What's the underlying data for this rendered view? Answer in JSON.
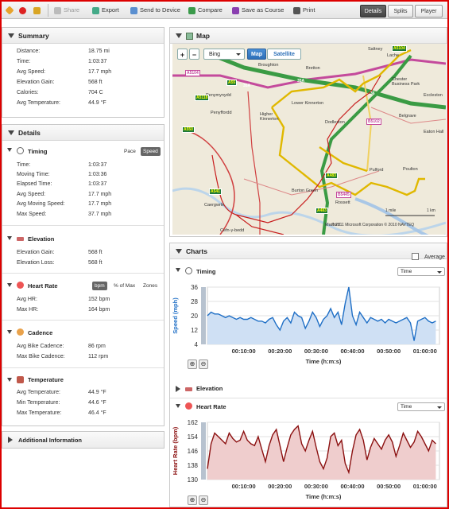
{
  "toolbar": {
    "share": "Share",
    "export": "Export",
    "send": "Send to Device",
    "compare": "Compare",
    "save_course": "Save as Course",
    "print": "Print",
    "tabs": [
      "Details",
      "Splits",
      "Player"
    ],
    "active_tab": "Details"
  },
  "summary": {
    "title": "Summary",
    "rows": [
      {
        "label": "Distance:",
        "value": "18.75 mi"
      },
      {
        "label": "Time:",
        "value": "1:03:37"
      },
      {
        "label": "Avg Speed:",
        "value": "17.7 mph"
      },
      {
        "label": "Elevation Gain:",
        "value": "568 ft"
      },
      {
        "label": "Calories:",
        "value": "704 C"
      },
      {
        "label": "Avg Temperature:",
        "value": "44.9 °F"
      }
    ]
  },
  "details": {
    "title": "Details",
    "timing": {
      "title": "Timing",
      "toggle": [
        "Pace",
        "Speed"
      ],
      "rows": [
        {
          "label": "Time:",
          "value": "1:03:37"
        },
        {
          "label": "Moving Time:",
          "value": "1:03:36"
        },
        {
          "label": "Elapsed Time:",
          "value": "1:03:37"
        },
        {
          "label": "Avg Speed:",
          "value": "17.7 mph"
        },
        {
          "label": "Avg Moving Speed:",
          "value": "17.7 mph"
        },
        {
          "label": "Max Speed:",
          "value": "37.7 mph"
        }
      ]
    },
    "elevation": {
      "title": "Elevation",
      "rows": [
        {
          "label": "Elevation Gain:",
          "value": "568 ft"
        },
        {
          "label": "Elevation Loss:",
          "value": "568 ft"
        }
      ]
    },
    "heart_rate": {
      "title": "Heart Rate",
      "toggle": [
        "bpm",
        "% of Max",
        "Zones"
      ],
      "rows": [
        {
          "label": "Avg HR:",
          "value": "152 bpm"
        },
        {
          "label": "Max HR:",
          "value": "164 bpm"
        }
      ]
    },
    "cadence": {
      "title": "Cadence",
      "rows": [
        {
          "label": "Avg Bike Cadence:",
          "value": "86 rpm"
        },
        {
          "label": "Max Bike Cadence:",
          "value": "112 rpm"
        }
      ]
    },
    "temperature": {
      "title": "Temperature",
      "rows": [
        {
          "label": "Avg Temperature:",
          "value": "44.9 °F"
        },
        {
          "label": "Min Temperature:",
          "value": "44.6 °F"
        },
        {
          "label": "Max Temperature:",
          "value": "46.4 °F"
        }
      ]
    }
  },
  "additional": {
    "title": "Additional Information"
  },
  "map": {
    "title": "Map",
    "provider": "Bing",
    "modes": [
      "Map",
      "Satellite"
    ],
    "active_mode": "Map",
    "labels": [
      "Saltney",
      "Lache",
      "Broughton",
      "Bretton",
      "Chester Business Park",
      "Eccleston",
      "Penymynydd",
      "Higher Kinnerton",
      "Lower Kinnerton",
      "Dodleston",
      "Belgrave",
      "Eaton Hall",
      "Penyffordd",
      "Pulford",
      "Poulton",
      "Burton Green",
      "Rossett",
      "Marford",
      "Caergwrle",
      "Cefn-y-bedd"
    ],
    "roads": [
      "A5104",
      "A5104",
      "A55",
      "35A",
      "35A",
      "A5118",
      "36",
      "A550",
      "A483",
      "B5445",
      "A483",
      "A541",
      "B5102"
    ],
    "scale": [
      "1 mile",
      "1 km"
    ],
    "copyright": "© 2011 Microsoft Corporation  © 2010 NAVTEQ"
  },
  "charts": {
    "title": "Charts",
    "average_label": "Average",
    "timing_title": "Timing",
    "elevation_title": "Elevation",
    "heart_title": "Heart Rate",
    "time_select": "Time",
    "xlabel": "Time (h:m:s)"
  },
  "chart_data": [
    {
      "type": "area",
      "title": "Timing",
      "ylabel": "Speed (mph)",
      "xlabel": "Time (h:m:s)",
      "ylim": [
        4,
        36
      ],
      "yticks": [
        36,
        28,
        20,
        12,
        4
      ],
      "xticks": [
        "00:10:00",
        "00:20:00",
        "00:30:00",
        "00:40:00",
        "00:50:00",
        "01:00:00"
      ],
      "x_minutes": [
        0,
        1,
        2,
        3,
        4,
        5,
        6,
        7,
        8,
        9,
        10,
        11,
        12,
        13,
        14,
        15,
        16,
        17,
        18,
        19,
        20,
        21,
        22,
        23,
        24,
        25,
        26,
        27,
        28,
        29,
        30,
        31,
        32,
        33,
        34,
        35,
        36,
        37,
        38,
        39,
        40,
        41,
        42,
        43,
        44,
        45,
        46,
        47,
        48,
        49,
        50,
        51,
        52,
        53,
        54,
        55,
        56,
        57,
        58,
        59,
        60,
        61,
        62,
        63
      ],
      "values": [
        20,
        22,
        21,
        21,
        20,
        19,
        20,
        19,
        18,
        19,
        18,
        18,
        19,
        18,
        17,
        17,
        16,
        18,
        19,
        15,
        12,
        17,
        19,
        16,
        22,
        20,
        19,
        13,
        17,
        22,
        19,
        14,
        18,
        20,
        24,
        19,
        22,
        15,
        27,
        36,
        20,
        15,
        22,
        19,
        16,
        19,
        18,
        17,
        18,
        16,
        18,
        17,
        16,
        17,
        18,
        19,
        16,
        6,
        17,
        18,
        19,
        17,
        16,
        17
      ]
    },
    {
      "type": "area",
      "title": "Heart Rate",
      "ylabel": "Heart Rate (bpm)",
      "xlabel": "Time (h:m:s)",
      "ylim": [
        130,
        162
      ],
      "yticks": [
        162,
        154,
        146,
        138,
        130
      ],
      "xticks": [
        "00:10:00",
        "00:20:00",
        "00:30:00",
        "00:40:00",
        "00:50:00",
        "01:00:00"
      ],
      "x_minutes": [
        0,
        1,
        2,
        3,
        4,
        5,
        6,
        7,
        8,
        9,
        10,
        11,
        12,
        13,
        14,
        15,
        16,
        17,
        18,
        19,
        20,
        21,
        22,
        23,
        24,
        25,
        26,
        27,
        28,
        29,
        30,
        31,
        32,
        33,
        34,
        35,
        36,
        37,
        38,
        39,
        40,
        41,
        42,
        43,
        44,
        45,
        46,
        47,
        48,
        49,
        50,
        51,
        52,
        53,
        54,
        55,
        56,
        57,
        58,
        59,
        60,
        61,
        62,
        63
      ],
      "values": [
        136,
        150,
        156,
        154,
        152,
        150,
        156,
        153,
        151,
        152,
        157,
        152,
        150,
        149,
        154,
        147,
        140,
        149,
        155,
        158,
        149,
        140,
        148,
        155,
        158,
        160,
        150,
        146,
        152,
        157,
        148,
        140,
        136,
        142,
        154,
        156,
        149,
        152,
        139,
        134,
        146,
        155,
        158,
        152,
        141,
        148,
        153,
        150,
        147,
        152,
        155,
        151,
        143,
        149,
        156,
        152,
        148,
        151,
        157,
        154,
        150,
        146,
        152,
        150
      ]
    }
  ]
}
